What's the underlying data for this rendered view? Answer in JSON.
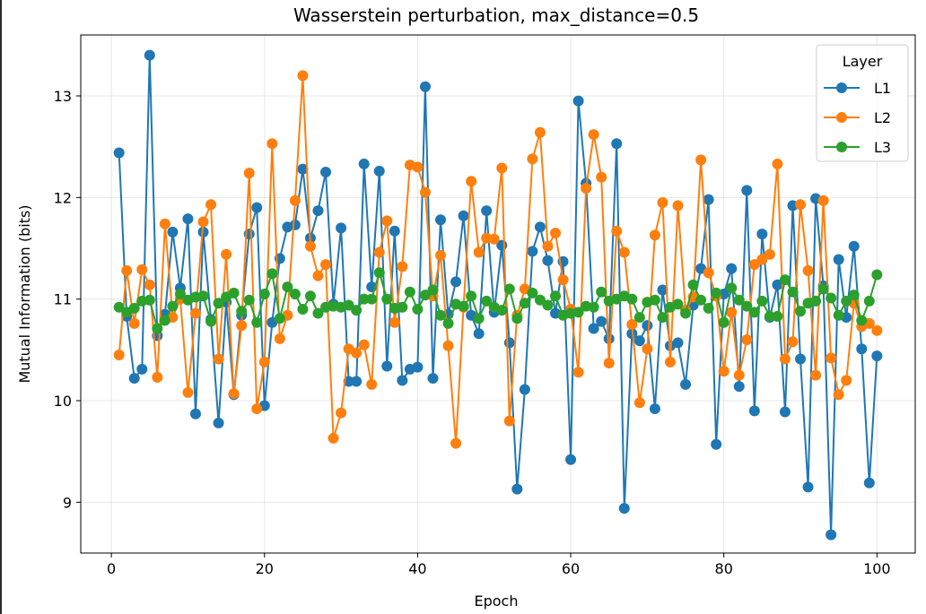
{
  "chart_data": {
    "type": "line",
    "title": "Wasserstein perturbation, max_distance=0.5",
    "xlabel": "Epoch",
    "ylabel": "Mutual Information (bits)",
    "xlim": [
      -4,
      105
    ],
    "ylim": [
      8.5,
      13.6
    ],
    "xticks": [
      0,
      20,
      40,
      60,
      80,
      100
    ],
    "yticks": [
      9,
      10,
      11,
      12,
      13
    ],
    "grid": true,
    "legend": {
      "title": "Layer",
      "placement": "top-right"
    },
    "x": [
      1,
      2,
      3,
      4,
      5,
      6,
      7,
      8,
      9,
      10,
      11,
      12,
      13,
      14,
      15,
      16,
      17,
      18,
      19,
      20,
      21,
      22,
      23,
      24,
      25,
      26,
      27,
      28,
      29,
      30,
      31,
      32,
      33,
      34,
      35,
      36,
      37,
      38,
      39,
      40,
      41,
      42,
      43,
      44,
      45,
      46,
      47,
      48,
      49,
      50,
      51,
      52,
      53,
      54,
      55,
      56,
      57,
      58,
      59,
      60,
      61,
      62,
      63,
      64,
      65,
      66,
      67,
      68,
      69,
      70,
      71,
      72,
      73,
      74,
      75,
      76,
      77,
      78,
      79,
      80,
      81,
      82,
      83,
      84,
      85,
      86,
      87,
      88,
      89,
      90,
      91,
      92,
      93,
      94,
      95,
      96,
      97,
      98,
      99,
      100
    ],
    "series": [
      {
        "name": "L1",
        "color": "#1f77b4",
        "values": [
          12.44,
          10.83,
          10.22,
          10.31,
          13.4,
          10.64,
          10.85,
          11.66,
          11.11,
          11.79,
          9.87,
          11.66,
          10.8,
          9.78,
          10.97,
          10.06,
          10.84,
          11.64,
          11.9,
          9.95,
          10.77,
          11.4,
          11.71,
          11.73,
          12.28,
          11.6,
          11.87,
          12.25,
          10.95,
          11.7,
          10.19,
          10.19,
          12.33,
          11.12,
          12.26,
          10.34,
          11.67,
          10.2,
          10.31,
          10.33,
          13.09,
          10.22,
          11.78,
          10.85,
          11.17,
          11.82,
          10.84,
          10.66,
          11.87,
          10.87,
          11.53,
          10.57,
          9.13,
          10.11,
          11.47,
          11.71,
          11.38,
          10.86,
          11.37,
          9.42,
          12.95,
          12.14,
          10.71,
          10.78,
          10.61,
          12.53,
          8.94,
          10.66,
          10.59,
          10.74,
          9.92,
          11.09,
          10.54,
          10.57,
          10.16,
          10.94,
          11.3,
          11.98,
          9.57,
          11.05,
          11.3,
          10.14,
          12.07,
          9.9,
          11.64,
          10.82,
          11.14,
          9.89,
          11.92,
          10.41,
          9.15,
          11.99,
          11.13,
          8.68,
          11.39,
          10.82,
          11.52,
          10.51,
          9.19,
          10.44
        ]
      },
      {
        "name": "L2",
        "color": "#ff7f0e",
        "values": [
          10.45,
          11.28,
          10.76,
          11.29,
          11.14,
          10.23,
          11.74,
          10.82,
          11.0,
          10.08,
          10.86,
          11.76,
          11.93,
          10.41,
          11.44,
          10.07,
          10.74,
          12.24,
          9.92,
          10.38,
          12.53,
          10.61,
          10.84,
          11.97,
          13.2,
          11.52,
          11.23,
          11.34,
          9.63,
          9.88,
          10.51,
          10.47,
          10.55,
          10.16,
          11.46,
          11.77,
          10.77,
          11.32,
          12.32,
          12.3,
          12.05,
          11.03,
          11.43,
          10.54,
          9.58,
          10.92,
          12.16,
          11.46,
          11.6,
          11.59,
          12.29,
          9.8,
          10.84,
          11.1,
          12.38,
          12.64,
          11.52,
          11.65,
          11.19,
          10.9,
          10.28,
          12.09,
          12.62,
          12.2,
          10.37,
          11.67,
          11.46,
          10.75,
          9.98,
          10.51,
          11.63,
          11.95,
          10.38,
          11.92,
          10.89,
          11.02,
          12.37,
          11.26,
          11.03,
          10.29,
          10.87,
          10.25,
          10.6,
          11.34,
          11.39,
          11.44,
          12.33,
          10.41,
          10.58,
          11.93,
          11.28,
          10.25,
          11.97,
          10.42,
          10.06,
          10.2,
          10.96,
          10.73,
          10.76,
          10.69
        ]
      },
      {
        "name": "L3",
        "color": "#2ca02c",
        "values": [
          10.92,
          10.87,
          10.91,
          10.98,
          10.99,
          10.71,
          10.79,
          10.93,
          11.05,
          10.99,
          11.02,
          11.03,
          10.78,
          10.96,
          11.02,
          11.06,
          10.88,
          10.99,
          10.77,
          11.05,
          11.25,
          10.81,
          11.12,
          11.05,
          10.9,
          11.03,
          10.86,
          10.92,
          10.93,
          10.92,
          10.94,
          10.89,
          11.0,
          11.0,
          11.26,
          11.0,
          10.91,
          10.92,
          11.07,
          10.9,
          11.04,
          11.09,
          10.84,
          10.76,
          10.95,
          10.93,
          11.03,
          10.81,
          10.98,
          10.92,
          10.89,
          11.1,
          10.81,
          10.96,
          11.06,
          10.99,
          10.94,
          11.03,
          10.84,
          10.86,
          10.87,
          10.93,
          10.92,
          11.07,
          10.98,
          11.0,
          11.03,
          11.0,
          10.82,
          10.97,
          10.99,
          10.82,
          10.92,
          10.95,
          10.86,
          11.14,
          10.99,
          10.91,
          11.06,
          10.77,
          11.11,
          10.99,
          10.93,
          10.87,
          10.98,
          10.83,
          10.83,
          11.19,
          11.07,
          10.88,
          10.96,
          10.98,
          11.1,
          11.01,
          10.84,
          10.98,
          11.04,
          10.79,
          10.98,
          11.24
        ]
      }
    ]
  }
}
